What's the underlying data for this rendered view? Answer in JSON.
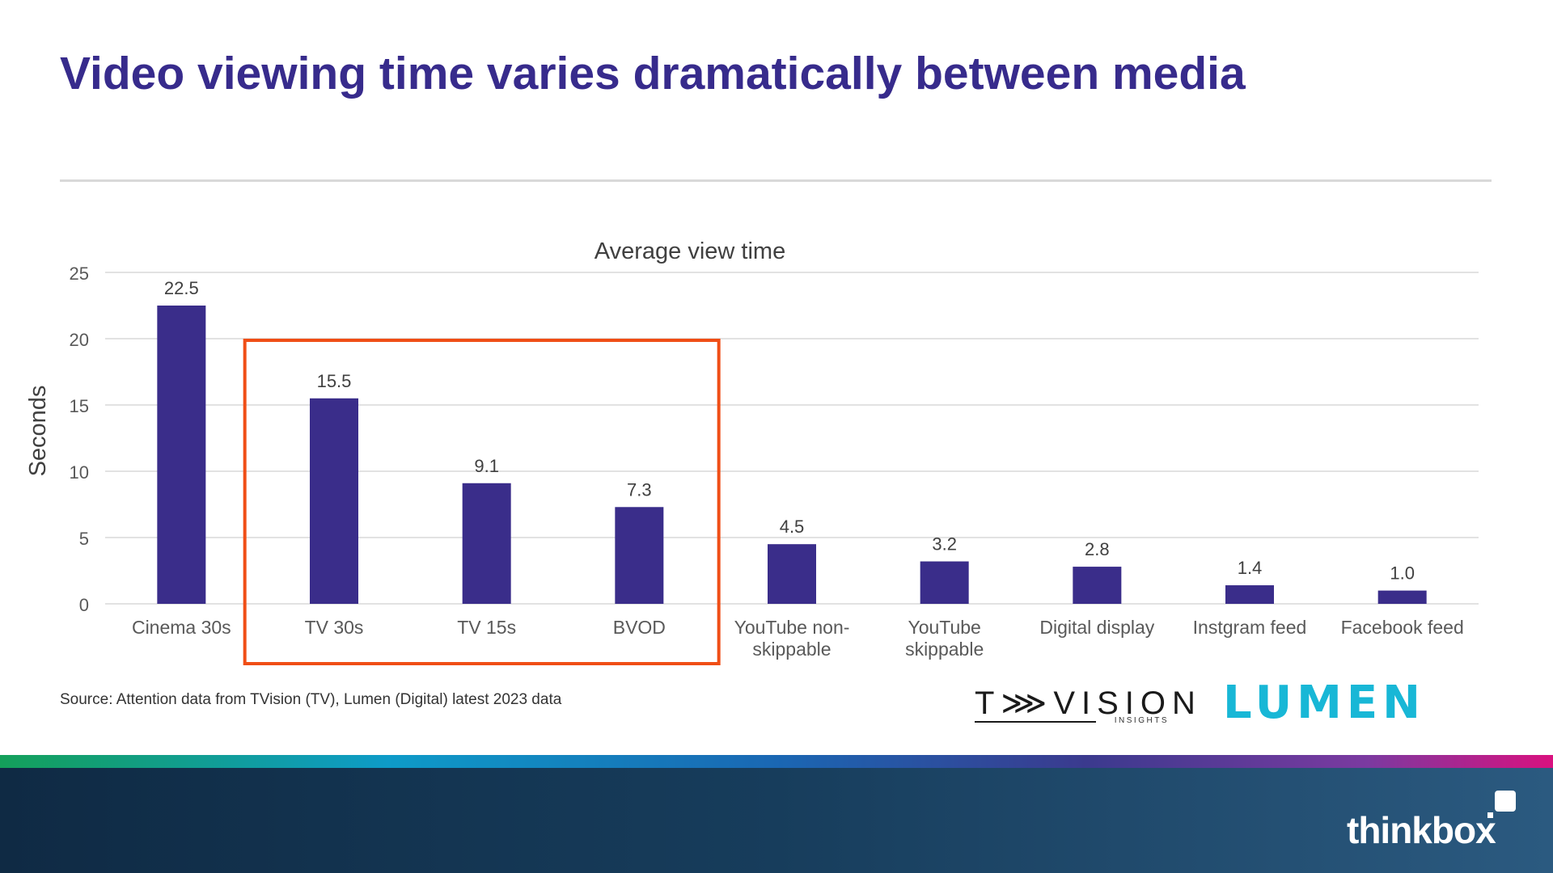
{
  "slide": {
    "title": "Video viewing time varies dramatically between media",
    "source": "Source: Attention data from TVision (TV), Lumen (Digital) latest 2023 data"
  },
  "logos": {
    "tvision_word": "T⋙VISION",
    "tvision_sub": "INSIGHTS",
    "lumen": "LUMEN",
    "thinkbox": "thinkbox"
  },
  "colors": {
    "title": "#372b8c",
    "bar": "#3a2d8a",
    "highlight_box": "#f04e16",
    "gridline": "#d9d9d9",
    "footer": "#173d5c"
  },
  "chart_data": {
    "type": "bar",
    "title": "Average view time",
    "ylabel": "Seconds",
    "xlabel": "",
    "ylim": [
      0,
      25
    ],
    "yticks": [
      0,
      5,
      10,
      15,
      20,
      25
    ],
    "grid": true,
    "categories": [
      [
        "Cinema 30s"
      ],
      [
        "TV 30s"
      ],
      [
        "TV 15s"
      ],
      [
        "BVOD"
      ],
      [
        "YouTube non-",
        "skippable"
      ],
      [
        "YouTube",
        "skippable"
      ],
      [
        "Digital display"
      ],
      [
        "Instgram feed"
      ],
      [
        "Facebook feed"
      ]
    ],
    "values": [
      22.5,
      15.5,
      9.1,
      7.3,
      4.5,
      3.2,
      2.8,
      1.4,
      1.0
    ],
    "data_labels": [
      "22.5",
      "15.5",
      "9.1",
      "7.3",
      "4.5",
      "3.2",
      "2.8",
      "1.4",
      "1.0"
    ],
    "highlighted_categories": [
      1,
      2,
      3
    ]
  }
}
